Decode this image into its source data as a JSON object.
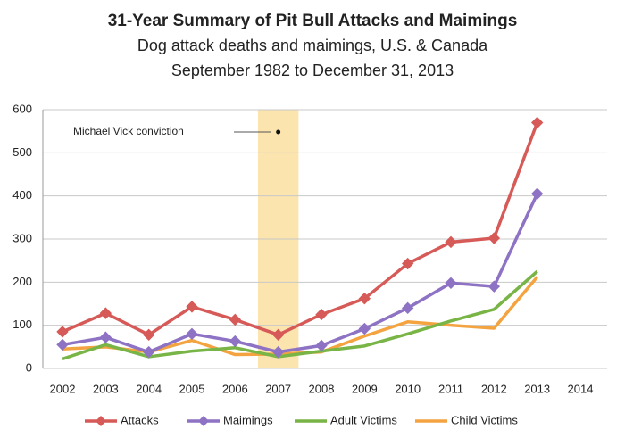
{
  "chart_data": {
    "type": "line",
    "title": "31-Year Summary of Pit Bull Attacks and Maimings",
    "subtitle_lines": [
      "Dog attack deaths and maimings, U.S. & Canada",
      "September 1982 to December 31, 2013"
    ],
    "categories": [
      "2002",
      "2003",
      "2004",
      "2005",
      "2006",
      "2007",
      "2008",
      "2009",
      "2010",
      "2011",
      "2012",
      "2013",
      "2014"
    ],
    "series": [
      {
        "name": "Attacks",
        "color": "#d65a57",
        "marker": "diamond",
        "values": [
          85,
          128,
          78,
          143,
          113,
          78,
          125,
          162,
          243,
          293,
          302,
          570,
          null
        ]
      },
      {
        "name": "Maimings",
        "color": "#8e72c4",
        "marker": "diamond",
        "values": [
          55,
          72,
          38,
          80,
          63,
          38,
          53,
          92,
          140,
          198,
          190,
          405,
          null
        ]
      },
      {
        "name": "Adult Victims",
        "color": "#78b446",
        "values": [
          22,
          55,
          27,
          40,
          48,
          27,
          40,
          52,
          80,
          110,
          137,
          225,
          null
        ]
      },
      {
        "name": "Child Victims",
        "color": "#f3a441",
        "values": [
          45,
          50,
          38,
          65,
          32,
          33,
          38,
          75,
          108,
          100,
          93,
          212,
          null
        ]
      }
    ],
    "ylim": [
      0,
      600
    ],
    "yticks": [
      0,
      100,
      200,
      300,
      400,
      500,
      600
    ],
    "grid": true,
    "highlight": {
      "category": "2007",
      "color": "#fbe4ad",
      "annotation": "Michael Vick conviction"
    },
    "legend": "bottom"
  }
}
